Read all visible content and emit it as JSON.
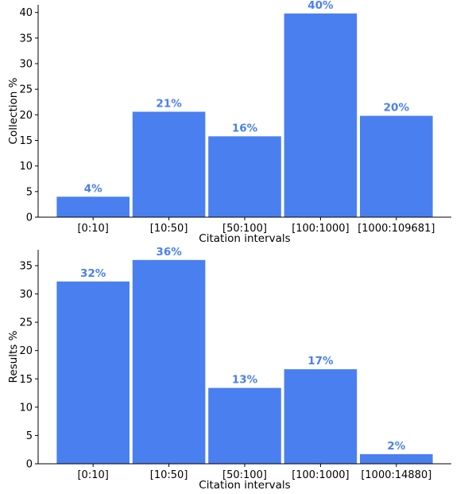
{
  "colors": {
    "bar": "#4a7fef",
    "label": "#4a7fef",
    "axis": "#000000"
  },
  "chart_data": [
    {
      "type": "bar",
      "categories": [
        "[0:10]",
        "[10:50]",
        "[50:100]",
        "[100:1000]",
        "[1000:109681]"
      ],
      "values": [
        4,
        20.6,
        15.8,
        39.8,
        19.8
      ],
      "data_labels": [
        "4%",
        "21%",
        "16%",
        "40%",
        "20%"
      ],
      "xlabel": "Citation intervals",
      "ylabel": "Collection %",
      "ylim": [
        0,
        41.5
      ],
      "yticks": [
        0,
        5,
        10,
        15,
        20,
        25,
        30,
        35,
        40
      ],
      "grid": false
    },
    {
      "type": "bar",
      "categories": [
        "[0:10]",
        "[10:50]",
        "[50:100]",
        "[100:1000]",
        "[1000:14880]"
      ],
      "values": [
        32.2,
        36,
        13.4,
        16.7,
        1.7
      ],
      "data_labels": [
        "32%",
        "36%",
        "13%",
        "17%",
        "2%"
      ],
      "xlabel": "Citation intervals",
      "ylabel": "Results %",
      "ylim": [
        0,
        37.8
      ],
      "yticks": [
        0,
        5,
        10,
        15,
        20,
        25,
        30,
        35
      ],
      "grid": false
    }
  ]
}
